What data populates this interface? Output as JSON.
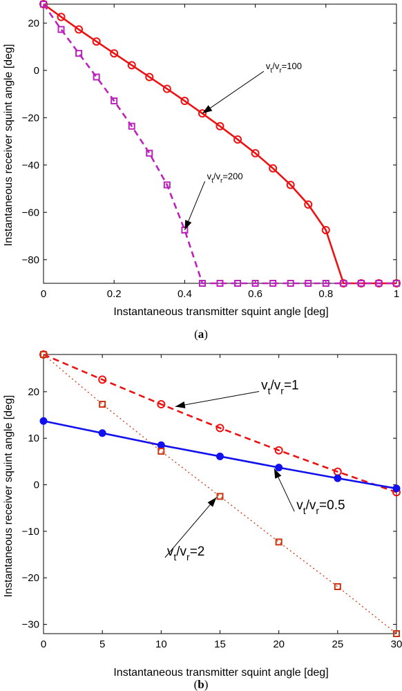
{
  "chart_data": [
    {
      "type": "line",
      "panel_label": "a",
      "xlabel": "Instantaneous transmitter squint angle [deg]",
      "ylabel": "Instantaneous receiver squint angle [deg]",
      "xlim": [
        0,
        1
      ],
      "ylim": [
        -90,
        28
      ],
      "xticks": [
        "0",
        "0.2",
        "0.4",
        "0.6",
        "0.8",
        "1"
      ],
      "yticks": [
        "20",
        "0",
        "−20",
        "−40",
        "−60",
        "−80"
      ],
      "grid": false,
      "series": [
        {
          "color": "#ee1111",
          "line": "solid",
          "marker": "circle",
          "x": [
            0,
            0.05,
            0.1,
            0.15,
            0.2,
            0.25,
            0.3,
            0.35,
            0.4,
            0.45,
            0.5,
            0.55,
            0.6,
            0.65,
            0.7,
            0.75,
            0.8,
            0.85,
            0.9,
            0.95,
            1.0
          ],
          "y": [
            28,
            22.6,
            17.3,
            12.2,
            7.2,
            2.2,
            -2.8,
            -7.8,
            -12.9,
            -18.2,
            -23.6,
            -29.2,
            -35.0,
            -41.4,
            -48.4,
            -56.7,
            -67.5,
            -90,
            -90,
            -90,
            -90
          ]
        },
        {
          "color": "#bb22bb",
          "line": "dashed",
          "marker": "square",
          "x": [
            0,
            0.05,
            0.1,
            0.15,
            0.2,
            0.25,
            0.3,
            0.35,
            0.4,
            0.45,
            0.5,
            0.55,
            0.6,
            0.65,
            0.7,
            0.75,
            0.8,
            0.85,
            0.9,
            0.95,
            1.0
          ],
          "y": [
            28,
            17.3,
            7.2,
            -2.8,
            -12.9,
            -23.6,
            -35.0,
            -48.4,
            -67.5,
            -90,
            -90,
            -90,
            -90,
            -90,
            -90,
            -90,
            -90,
            -90,
            -90,
            -90,
            -90
          ]
        }
      ],
      "annotations": [
        {
          "main": "v",
          "sub1": "t",
          "mid": "/v",
          "sub2": "r",
          "tail": "=100",
          "size": 13,
          "text_x": 0.63,
          "text_y": 0.5,
          "target_x": 0.45,
          "target_y": -18.2
        },
        {
          "main": "v",
          "sub1": "t",
          "mid": "/v",
          "sub2": "r",
          "tail": "=200",
          "size": 13,
          "text_x": 0.463,
          "text_y": -46,
          "target_x": 0.4,
          "target_y": -67.5
        }
      ]
    },
    {
      "type": "line",
      "panel_label": "b",
      "xlabel": "Instantaneous transmitter squint angle [deg]",
      "ylabel": "Instantaneous receiver squint angle [deg]",
      "xlim": [
        0,
        30
      ],
      "ylim": [
        -32,
        28
      ],
      "xticks": [
        "0",
        "5",
        "10",
        "15",
        "20",
        "25",
        "30"
      ],
      "yticks": [
        "20",
        "10",
        "0",
        "−10",
        "−20",
        "−30"
      ],
      "grid": false,
      "series": [
        {
          "color": "#ee1111",
          "line": "dashed",
          "marker": "circle",
          "x": [
            0,
            5,
            10,
            15,
            20,
            25,
            30
          ],
          "y": [
            28,
            22.6,
            17.3,
            12.2,
            7.4,
            2.8,
            -1.6
          ]
        },
        {
          "color": "#1111ee",
          "line": "solid",
          "marker": "dot",
          "x": [
            0,
            5,
            10,
            15,
            20,
            25,
            30
          ],
          "y": [
            13.7,
            11.1,
            8.5,
            6.1,
            3.7,
            1.4,
            -0.8
          ]
        },
        {
          "color": "#cc3311",
          "line": "dotted",
          "marker": "square",
          "x": [
            0,
            5,
            10,
            15,
            20,
            25,
            30
          ],
          "y": [
            28,
            17.3,
            7.2,
            -2.5,
            -12.3,
            -21.9,
            -32
          ]
        }
      ],
      "annotations": [
        {
          "main": "v",
          "sub1": "t",
          "mid": "/v",
          "sub2": "r",
          "tail": "=1",
          "size": 19,
          "text_x": 18.5,
          "text_y": 20.5,
          "target_x": 11.2,
          "target_y": 16.8
        },
        {
          "main": "v",
          "sub1": "t",
          "mid": "/v",
          "sub2": "r",
          "tail": "=0.5",
          "size": 19,
          "text_x": 21.5,
          "text_y": -5.3,
          "target_x": 19.6,
          "target_y": 3.5
        },
        {
          "main": "v",
          "sub1": "t",
          "mid": "/v",
          "sub2": "r",
          "tail": "=2",
          "size": 19,
          "text_x": 10.5,
          "text_y": -15.2,
          "target_x": 14.7,
          "target_y": -2.7
        }
      ]
    }
  ]
}
